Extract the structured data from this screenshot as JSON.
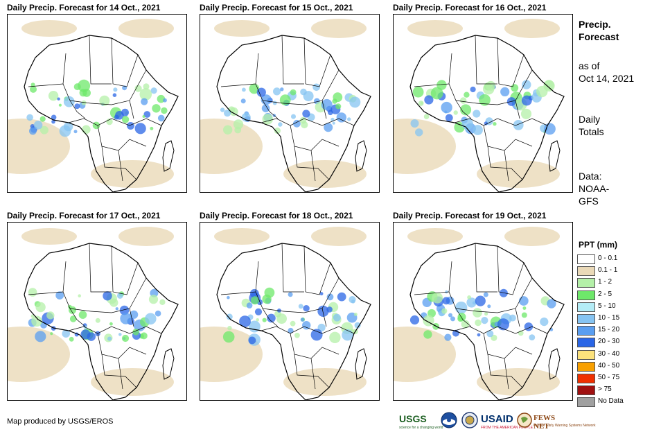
{
  "panels": [
    {
      "title": "Daily Precip. Forecast for 14 Oct., 2021"
    },
    {
      "title": "Daily Precip. Forecast for 15 Oct., 2021"
    },
    {
      "title": "Daily Precip. Forecast for 16 Oct., 2021"
    },
    {
      "title": "Daily Precip. Forecast for 17 Oct., 2021"
    },
    {
      "title": "Daily Precip. Forecast for 18 Oct., 2021"
    },
    {
      "title": "Daily Precip. Forecast for 19 Oct., 2021"
    }
  ],
  "sidebar": {
    "title_line1": "Precip.",
    "title_line2": "Forecast",
    "asof_line1": "as of",
    "asof_line2": "Oct 14, 2021",
    "totals_line1": "Daily",
    "totals_line2": "Totals",
    "data_line1": "Data:",
    "data_line2": "NOAA-",
    "data_line3": "GFS"
  },
  "legend": {
    "title": "PPT (mm)",
    "items": [
      {
        "label": "0 - 0.1",
        "color": "#ffffff"
      },
      {
        "label": "0.1 - 1",
        "color": "#ead9b8"
      },
      {
        "label": "1 - 2",
        "color": "#b4f0a8"
      },
      {
        "label": "2 - 5",
        "color": "#6ee86a"
      },
      {
        "label": "5 - 10",
        "color": "#b4ecf6"
      },
      {
        "label": "10 - 15",
        "color": "#86c4f2"
      },
      {
        "label": "15 - 20",
        "color": "#5a9ef0"
      },
      {
        "label": "20 - 30",
        "color": "#2a66e6"
      },
      {
        "label": "30 - 40",
        "color": "#fce27c"
      },
      {
        "label": "40 - 50",
        "color": "#f8a000"
      },
      {
        "label": "50 - 75",
        "color": "#f03000"
      },
      {
        "label": "> 75",
        "color": "#a01010"
      },
      {
        "label": "No Data",
        "color": "#a0a0a0"
      }
    ]
  },
  "credit": "Map produced by USGS/EROS",
  "logos": {
    "usgs": "USGS",
    "usgs_tagline": "science for a changing world",
    "usaid": "USAID",
    "usaid_tagline": "FROM THE AMERICAN PEOPLE",
    "fews": "FEWS NET",
    "fews_tagline": "Famine Early Warning Systems Network"
  }
}
